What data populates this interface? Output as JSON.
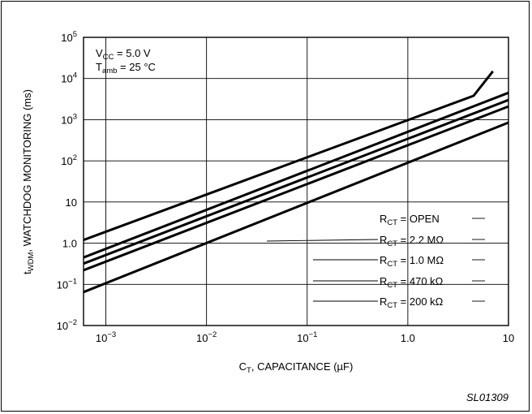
{
  "chart_data": {
    "type": "line",
    "x_scale": "log",
    "y_scale": "log",
    "xlim": [
      0.0006,
      10
    ],
    "ylim": [
      0.01,
      100000
    ],
    "grid": true,
    "xlabel": {
      "main": "C",
      "sub": "T",
      "rest": ", CAPACITANCE (µF)"
    },
    "ylabel": {
      "main": "t",
      "sub": "WDM",
      "rest": ", WATCHDOG MONITORING (ms)"
    },
    "x_ticks": [
      {
        "value": 0.001,
        "mant": "10",
        "exp": "−3"
      },
      {
        "value": 0.01,
        "mant": "10",
        "exp": "−2"
      },
      {
        "value": 0.1,
        "mant": "10",
        "exp": "−1"
      },
      {
        "value": 1,
        "mant": "1.0",
        "exp": ""
      },
      {
        "value": 10,
        "mant": "10",
        "exp": ""
      }
    ],
    "y_ticks": [
      {
        "value": 0.01,
        "mant": "10",
        "exp": "−2"
      },
      {
        "value": 0.1,
        "mant": "10",
        "exp": "−1"
      },
      {
        "value": 1,
        "mant": "1.0",
        "exp": ""
      },
      {
        "value": 10,
        "mant": "10",
        "exp": ""
      },
      {
        "value": 100,
        "mant": "10",
        "exp": "2"
      },
      {
        "value": 1000,
        "mant": "10",
        "exp": "3"
      },
      {
        "value": 10000,
        "mant": "10",
        "exp": "4"
      },
      {
        "value": 100000,
        "mant": "10",
        "exp": "5"
      }
    ],
    "conditions": [
      {
        "main": "V",
        "sub": "CC",
        "rest": " = 5.0 V"
      },
      {
        "main": "T",
        "sub": "amb",
        "rest": " = 25 °C"
      }
    ],
    "series": [
      {
        "name": {
          "main": "R",
          "sub": "CT",
          "rest": " = OPEN"
        },
        "points": [
          [
            0.0006,
            1.2
          ],
          [
            4.5,
            3800
          ],
          [
            7,
            15000
          ]
        ]
      },
      {
        "name": {
          "main": "R",
          "sub": "CT",
          "rest": " = 2.2 MΩ"
        },
        "points": [
          [
            0.0006,
            0.45
          ],
          [
            10,
            4500
          ]
        ]
      },
      {
        "name": {
          "main": "R",
          "sub": "CT",
          "rest": " = 1.0 MΩ"
        },
        "points": [
          [
            0.0006,
            0.32
          ],
          [
            10,
            3000
          ]
        ]
      },
      {
        "name": {
          "main": "R",
          "sub": "CT",
          "rest": " = 470 kΩ"
        },
        "points": [
          [
            0.0006,
            0.22
          ],
          [
            10,
            2100
          ]
        ]
      },
      {
        "name": {
          "main": "R",
          "sub": "CT",
          "rest": " = 200 kΩ"
        },
        "points": [
          [
            0.0006,
            0.065
          ],
          [
            10,
            850
          ]
        ]
      }
    ],
    "figure_id": "SL01309"
  }
}
